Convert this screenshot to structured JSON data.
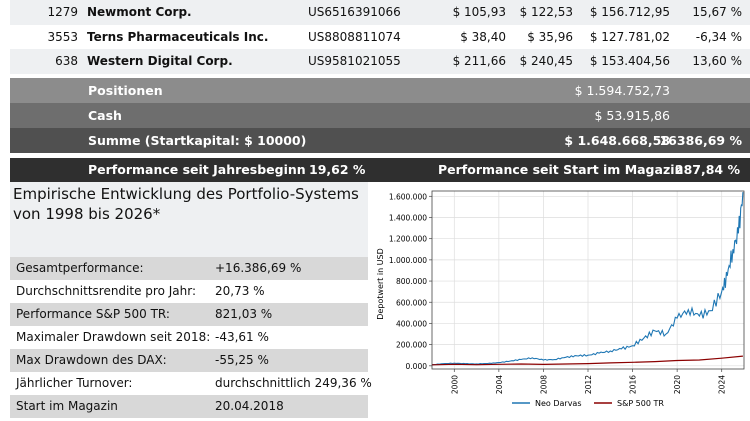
{
  "holdings": [
    {
      "qty": "1279",
      "name": "Newmont Corp.",
      "isin": "US6516391066",
      "buy": "$ 105,93",
      "price": "$ 122,53",
      "value": "$ 156.712,95",
      "perf": "15,67 %"
    },
    {
      "qty": "3553",
      "name": "Terns Pharmaceuticals Inc.",
      "isin": "US8808811074",
      "buy": "$ 38,40",
      "price": "$ 35,96",
      "value": "$ 127.781,02",
      "perf": "-6,34 %"
    },
    {
      "qty": "638",
      "name": "Western Digital Corp.",
      "isin": "US9581021055",
      "buy": "$ 211,66",
      "price": "$ 240,45",
      "value": "$ 153.404,56",
      "perf": "13,60 %"
    }
  ],
  "summary": {
    "positionen_label": "Positionen",
    "positionen_value": "$ 1.594.752,73",
    "cash_label": "Cash",
    "cash_value": "$ 53.915,86",
    "summe_label": "Summe (Startkapital: $ 10000)",
    "summe_value": "$ 1.648.668,58",
    "summe_perf": "16386,69 %",
    "perf_ytd_label": "Performance seit Jahresbeginn",
    "perf_ytd_value": "19,62 %",
    "perf_start_label": "Performance seit Start im Magazin",
    "perf_start_value": "287,84 %"
  },
  "stats": {
    "title": "Empirische Entwicklung des Portfolio-Systems von 1998 bis 2026*",
    "rows": [
      {
        "label": "Gesamtperformance:",
        "value": "+16.386,69 %"
      },
      {
        "label": "Durchschnittsrendite pro Jahr:",
        "value": "20,73 %"
      },
      {
        "label": "Performance S&P 500 TR:",
        "value": "821,03 %"
      },
      {
        "label": "Maximaler Drawdown seit 2018:",
        "value": "-43,61 %"
      },
      {
        "label": "Max Drawdown des DAX:",
        "value": "-55,25 %"
      },
      {
        "label": "Jährlicher Turnover:",
        "value": "durchschnittlich 249,36 %"
      },
      {
        "label": "Start im Magazin",
        "value": "20.04.2018"
      }
    ]
  },
  "chart_data": {
    "type": "line",
    "xlabel": "",
    "ylabel": "Depotwert in USD",
    "xlim": [
      1998,
      2026
    ],
    "ylim": [
      -30000,
      1650000
    ],
    "x_ticks": [
      "2000",
      "2004",
      "2008",
      "2012",
      "2016",
      "2020",
      "2024"
    ],
    "y_ticks": [
      "0.000",
      "200.000",
      "400.000",
      "600.000",
      "800.000",
      "1.000.000",
      "1.200.000",
      "1.400.000",
      "1.600.000"
    ],
    "grid": true,
    "legend_position": "bottom",
    "series": [
      {
        "name": "Neo Darvas",
        "color": "#1f77b4",
        "x": [
          1998,
          1999,
          2000,
          2001,
          2002,
          2003,
          2004,
          2005,
          2006,
          2007,
          2008,
          2009,
          2010,
          2011,
          2012,
          2013,
          2014,
          2015,
          2016,
          2017,
          2018,
          2019,
          2020,
          2021,
          2022,
          2023,
          2024,
          2024.5,
          2025,
          2025.5,
          2025.9
        ],
        "values": [
          10000,
          20000,
          25000,
          20000,
          18000,
          22000,
          30000,
          45000,
          60000,
          75000,
          55000,
          60000,
          80000,
          95000,
          100000,
          120000,
          140000,
          160000,
          190000,
          260000,
          330000,
          300000,
          450000,
          530000,
          470000,
          520000,
          700000,
          850000,
          1100000,
          1250000,
          1640000
        ]
      },
      {
        "name": "S&P 500 TR",
        "color": "#8b0000",
        "x": [
          1998,
          2000,
          2002,
          2004,
          2006,
          2008,
          2010,
          2012,
          2014,
          2016,
          2018,
          2020,
          2022,
          2024,
          2025.9
        ],
        "values": [
          10000,
          14000,
          11000,
          14000,
          17000,
          13000,
          17000,
          21000,
          28000,
          33000,
          40000,
          50000,
          55000,
          72000,
          92000
        ]
      }
    ]
  }
}
